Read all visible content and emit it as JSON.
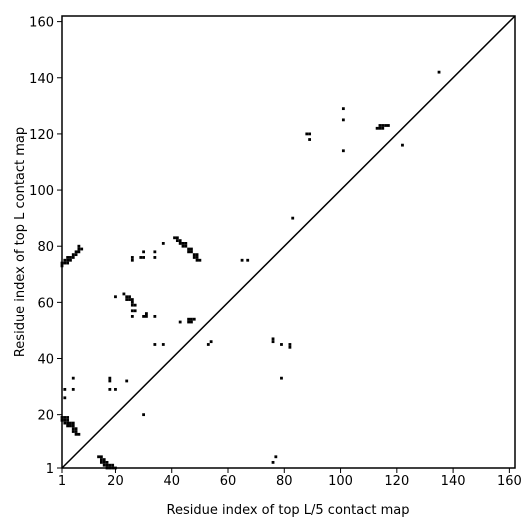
{
  "chart_data": {
    "type": "scatter",
    "xlabel": "Residue index of top L/5 contact map",
    "ylabel": "Residue index of top L contact map",
    "xlim": [
      1,
      162
    ],
    "ylim": [
      1,
      162
    ],
    "xticks": [
      1,
      20,
      40,
      60,
      80,
      100,
      120,
      140,
      160
    ],
    "yticks": [
      1,
      20,
      40,
      60,
      80,
      100,
      120,
      140,
      160
    ],
    "color": "#000000",
    "diagonal": true,
    "x": [
      1,
      2,
      3,
      1,
      2,
      3,
      2,
      3,
      4,
      5,
      4,
      5,
      3,
      5,
      6,
      6,
      7,
      5,
      6,
      1,
      1,
      2,
      3,
      2,
      3,
      4,
      3,
      4,
      5,
      5,
      6,
      6,
      7,
      7,
      8,
      7,
      2,
      2,
      5,
      5,
      18,
      18,
      18,
      20,
      24,
      30,
      14,
      15,
      15,
      16,
      16,
      17,
      17,
      18,
      18,
      19,
      19,
      15,
      16,
      17,
      20,
      24,
      24,
      25,
      26,
      26,
      26,
      27,
      23,
      25,
      20,
      27,
      26,
      26,
      30,
      31,
      31,
      34,
      34,
      37,
      37,
      34,
      34,
      30,
      30,
      29,
      26,
      26,
      41,
      42,
      42,
      43,
      43,
      44,
      45,
      44,
      45,
      46,
      47,
      46,
      47,
      48,
      48,
      49,
      49,
      49,
      50,
      43,
      46,
      46,
      47,
      48,
      47,
      54,
      53,
      65,
      67,
      76,
      76,
      79,
      82,
      82,
      79,
      77,
      76,
      83,
      88,
      89,
      89,
      101,
      101,
      101,
      113,
      114,
      115,
      114,
      115,
      116,
      117,
      122,
      135
    ],
    "y": [
      18,
      18,
      18,
      19,
      19,
      19,
      17,
      17,
      16,
      16,
      17,
      17,
      16,
      14,
      14,
      13,
      13,
      15,
      15,
      73,
      74,
      74,
      74,
      75,
      75,
      75,
      76,
      76,
      76,
      77,
      77,
      78,
      78,
      79,
      79,
      80,
      26,
      29,
      29,
      33,
      32,
      33,
      29,
      29,
      32,
      20,
      5,
      5,
      4,
      4,
      3,
      3,
      2,
      2,
      1,
      1,
      2,
      3,
      2,
      1,
      1,
      62,
      61,
      61,
      61,
      60,
      59,
      59,
      63,
      62,
      62,
      57,
      55,
      57,
      55,
      55,
      56,
      55,
      45,
      45,
      81,
      78,
      76,
      78,
      76,
      76,
      76,
      75,
      83,
      83,
      82,
      82,
      81,
      81,
      81,
      80,
      80,
      79,
      79,
      78,
      78,
      77,
      76,
      77,
      76,
      75,
      75,
      53,
      54,
      53,
      54,
      54,
      53,
      46,
      45,
      75,
      75,
      47,
      46,
      45,
      45,
      44,
      33,
      5,
      3,
      90,
      120,
      120,
      118,
      129,
      125,
      114,
      122,
      122,
      122,
      123,
      123,
      123,
      123,
      116,
      142
    ]
  }
}
